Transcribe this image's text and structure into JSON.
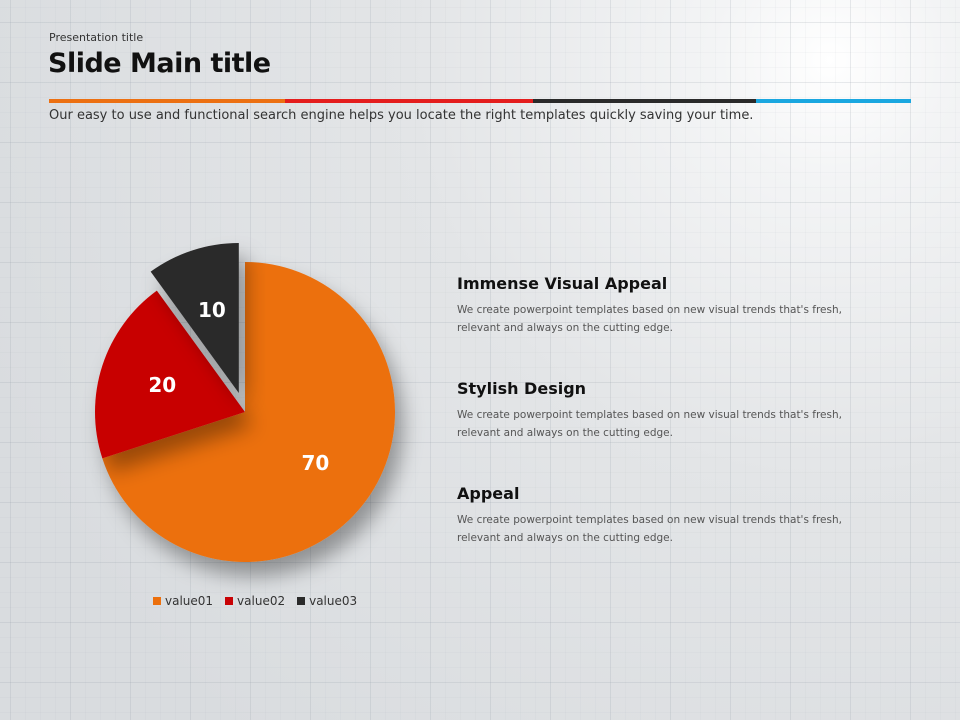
{
  "header": {
    "presentation_title": "Presentation title",
    "main_title": "Slide Main title",
    "subtitle": "Our easy to use and functional search engine helps you locate the right templates quickly saving your time.",
    "color_bar": [
      "#ec7012",
      "#e41d1d",
      "#2a2a2a",
      "#1aa7e0"
    ]
  },
  "chart_data": {
    "type": "pie",
    "categories": [
      "value01",
      "value02",
      "value03"
    ],
    "values": [
      70,
      20,
      10
    ],
    "colors": [
      "#ec6f0c",
      "#c80205",
      "#2a2a2a"
    ],
    "data_labels": [
      "70",
      "20",
      "10"
    ],
    "exploded": "value03",
    "legend_position": "bottom"
  },
  "features": [
    {
      "title": "Immense Visual Appeal",
      "text": "We create powerpoint templates based on new visual trends that's fresh, relevant and always on the cutting edge."
    },
    {
      "title": "Stylish Design",
      "text": "We create powerpoint templates based on new visual trends that's fresh, relevant and always on the cutting edge."
    },
    {
      "title": "Appeal",
      "text": "We create powerpoint templates based on new visual trends that's fresh, relevant and always on the cutting edge."
    }
  ]
}
